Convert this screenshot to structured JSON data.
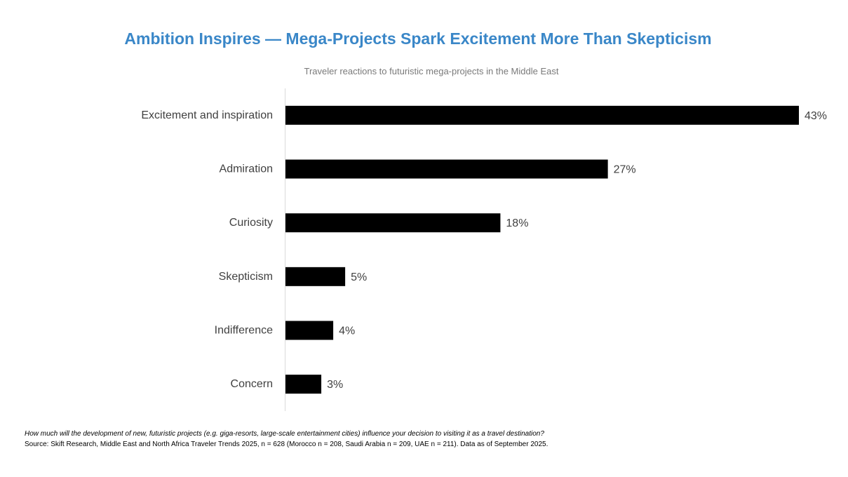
{
  "chart_data": {
    "type": "bar",
    "orientation": "horizontal",
    "title": "Ambition Inspires — Mega-Projects Spark Excitement More Than Skepticism",
    "subtitle": "Traveler reactions to futuristic mega-projects in the Middle East",
    "categories": [
      "Excitement and inspiration",
      "Admiration",
      "Curiosity",
      "Skepticism",
      "Indifference",
      "Concern"
    ],
    "values": [
      43,
      27,
      18,
      5,
      4,
      3
    ],
    "value_labels": [
      "43%",
      "27%",
      "18%",
      "5%",
      "4%",
      "3%"
    ],
    "xlim": [
      0,
      43
    ],
    "grid": false,
    "bar_color": "#000000",
    "title_color": "#3a87c8"
  },
  "footnote": {
    "question": "How much will the development of new, futuristic projects (e.g. giga-resorts, large-scale entertainment cities) influence your decision to visiting it as a travel destination?",
    "source": "Source: Skift Research, Middle East and North Africa Traveler Trends 2025, n = 628 (Morocco n = 208, Saudi Arabia n = 209, UAE n = 211). Data as of September 2025."
  }
}
